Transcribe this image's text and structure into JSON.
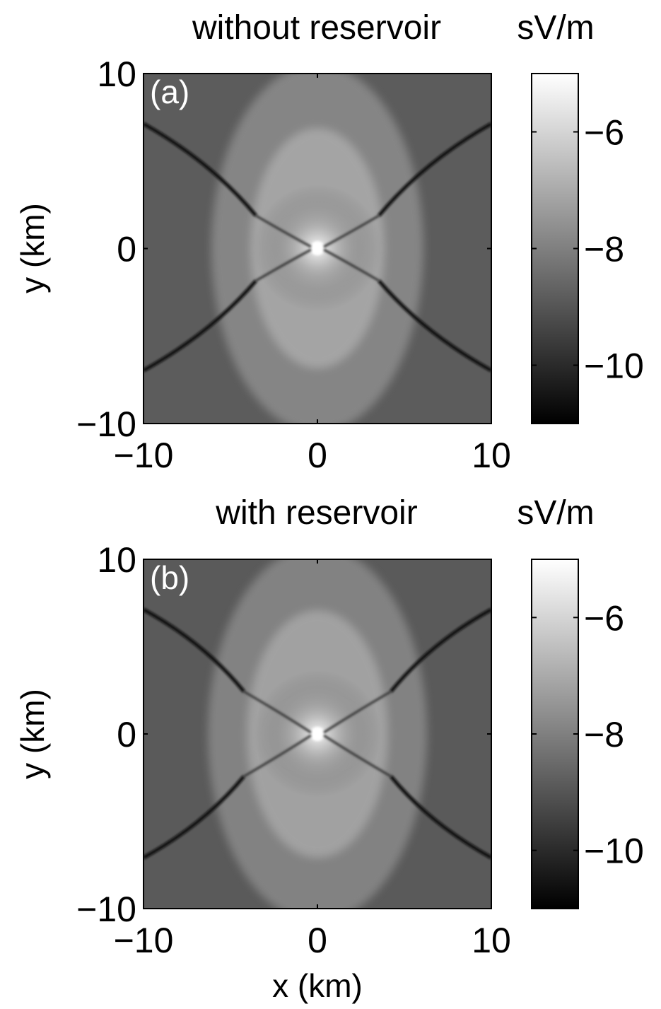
{
  "chart_data": [
    {
      "type": "heatmap",
      "panel_label": "(a)",
      "title": "without reservoir",
      "colorbar_label": "sV/m",
      "xlabel": "",
      "ylabel": "y (km)",
      "xlim": [
        -10,
        10
      ],
      "ylim": [
        -10,
        10
      ],
      "xticks": [
        -10,
        0,
        10
      ],
      "yticks": [
        -10,
        0,
        10
      ],
      "xtick_labels": [
        "−10",
        "0",
        "10"
      ],
      "ytick_labels": [
        "−10",
        "0",
        "10"
      ],
      "colormap": "gray",
      "clim": [
        -11,
        -5
      ],
      "colorbar_ticks": [
        -6,
        -8,
        -10
      ],
      "colorbar_tick_labels": [
        "−6",
        "−8",
        "−10"
      ],
      "description_values": {
        "peak_at": [
          0,
          0
        ],
        "peak_value": -5,
        "background_value": -8.5,
        "null_lines": "four dark diagonal ridges radiating from about (±3.8, ±2) toward the corners"
      }
    },
    {
      "type": "heatmap",
      "panel_label": "(b)",
      "title": "with reservoir",
      "colorbar_label": "sV/m",
      "xlabel": "x (km)",
      "ylabel": "y (km)",
      "xlim": [
        -10,
        10
      ],
      "ylim": [
        -10,
        10
      ],
      "xticks": [
        -10,
        0,
        10
      ],
      "yticks": [
        -10,
        0,
        10
      ],
      "xtick_labels": [
        "−10",
        "0",
        "10"
      ],
      "ytick_labels": [
        "−10",
        "0",
        "10"
      ],
      "colormap": "gray",
      "clim": [
        -11,
        -5
      ],
      "colorbar_ticks": [
        -6,
        -8,
        -10
      ],
      "colorbar_tick_labels": [
        "−6",
        "−8",
        "−10"
      ],
      "description_values": {
        "peak_at": [
          0,
          0
        ],
        "peak_value": -5,
        "background_value": -8.5,
        "null_lines": "four dark diagonal ridges radiating from about (±4.3, ±2.5) toward the corners"
      }
    }
  ]
}
